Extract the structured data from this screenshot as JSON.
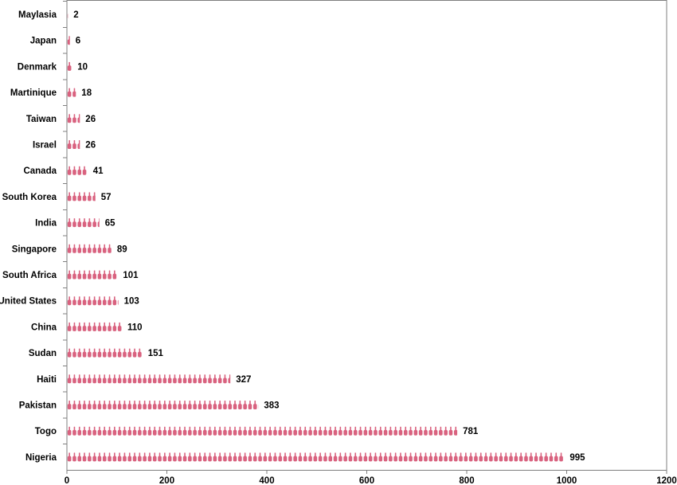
{
  "chart_data": {
    "type": "bar",
    "orientation": "horizontal",
    "marker": "bottle-pictograph",
    "bar_color": "#d9627f",
    "categories": [
      "Maylasia",
      "Japan",
      "Denmark",
      "Martinique",
      "Taiwan",
      "Israel",
      "Canada",
      "South Korea",
      "India",
      "Singapore",
      "South Africa",
      "United States",
      "China",
      "Sudan",
      "Haiti",
      "Pakistan",
      "Togo",
      "Nigeria"
    ],
    "values": [
      2,
      6,
      10,
      18,
      26,
      26,
      41,
      57,
      65,
      89,
      101,
      103,
      110,
      151,
      327,
      383,
      781,
      995
    ],
    "value_labels": [
      "2",
      "6",
      "10",
      "18",
      "26",
      "26",
      "41",
      "57",
      "65",
      "89",
      "101",
      "103",
      "110",
      "151",
      "327",
      "383",
      "781",
      "995"
    ],
    "xlim": [
      0,
      1200
    ],
    "x_ticks": [
      "0",
      "200",
      "400",
      "600",
      "800",
      "1000",
      "1200"
    ],
    "grid": false,
    "legend": "none"
  }
}
